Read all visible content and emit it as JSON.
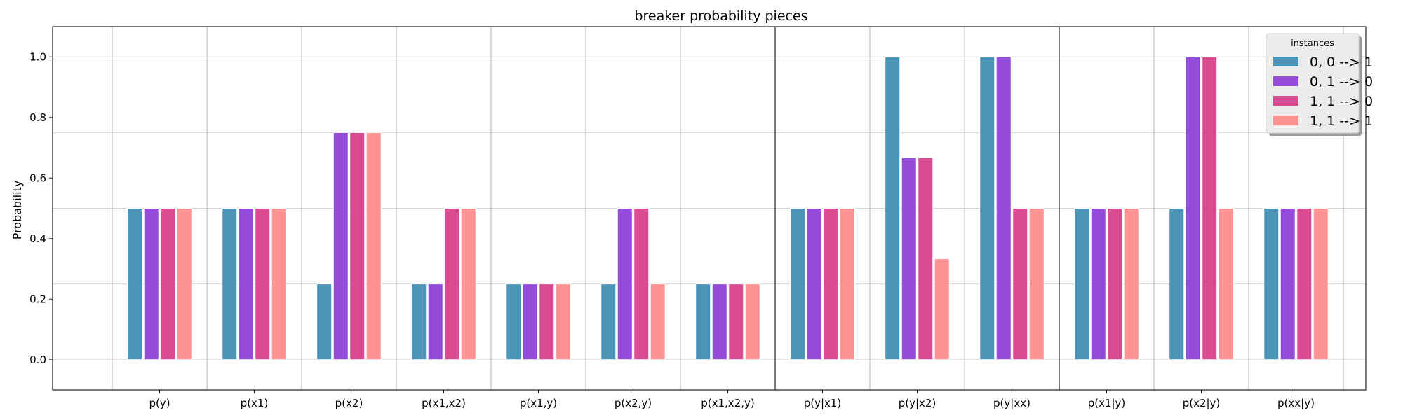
{
  "chart_data": {
    "type": "bar",
    "title": "breaker probability pieces",
    "xlabel": "",
    "ylabel": "Probability",
    "ylim": [
      -0.1,
      1.1
    ],
    "yticks": [
      "0.0",
      "0.2",
      "0.4",
      "0.6",
      "0.8",
      "1.0"
    ],
    "categories": [
      "p(y)",
      "p(x1)",
      "p(x2)",
      "p(x1,x2)",
      "p(x1,y)",
      "p(x2,y)",
      "p(x1,x2,y)",
      "p(y|x1)",
      "p(y|x2)",
      "p(y|xx)",
      "p(x1|y)",
      "p(x2|y)",
      "p(xx|y)"
    ],
    "group_separators_after": [
      6,
      9
    ],
    "grid": true,
    "legend": {
      "title": "instances",
      "placement": "top-right"
    },
    "series": [
      {
        "name": "0, 0 --> 1",
        "color": "#4b93b7",
        "values": [
          0.5,
          0.5,
          0.25,
          0.25,
          0.25,
          0.25,
          0.25,
          0.5,
          1.0,
          1.0,
          0.5,
          0.5,
          0.5
        ]
      },
      {
        "name": "0, 1 --> 0",
        "color": "#944bd9",
        "values": [
          0.5,
          0.5,
          0.75,
          0.25,
          0.25,
          0.5,
          0.25,
          0.5,
          0.6667,
          1.0,
          0.5,
          1.0,
          0.5
        ]
      },
      {
        "name": "1, 1 --> 0",
        "color": "#db4b92",
        "values": [
          0.5,
          0.5,
          0.75,
          0.5,
          0.25,
          0.5,
          0.25,
          0.5,
          0.6667,
          0.5,
          0.5,
          1.0,
          0.5
        ]
      },
      {
        "name": "1, 1 --> 1",
        "color": "#fe9393",
        "values": [
          0.5,
          0.5,
          0.75,
          0.5,
          0.25,
          0.25,
          0.25,
          0.5,
          0.3333,
          0.5,
          0.5,
          0.5,
          0.5
        ]
      }
    ]
  }
}
